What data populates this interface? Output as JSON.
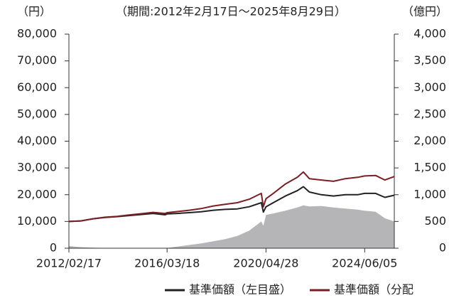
{
  "chart_data": {
    "type": "line",
    "title": "（期間:2012年2月17日～2025年8月29日）",
    "y_label": "（円）",
    "y2_label": "（億円）",
    "x": [
      "2012/02/17",
      "2012/08/17",
      "2013/02/18",
      "2013/08/19",
      "2014/02/17",
      "2014/08/18",
      "2015/02/17",
      "2015/08/17",
      "2016/02/17",
      "2016/03/18",
      "2016/08/17",
      "2017/02/17",
      "2017/08/17",
      "2018/02/19",
      "2018/08/17",
      "2019/02/18",
      "2019/08/19",
      "2020/02/17",
      "2020/03/19",
      "2020/04/28",
      "2020/08/17",
      "2021/02/17",
      "2021/08/17",
      "2021/11/17",
      "2022/02/17",
      "2022/08/17",
      "2023/02/17",
      "2023/08/17",
      "2024/02/19",
      "2024/06/05",
      "2024/11/18",
      "2025/04/08",
      "2025/08/29"
    ],
    "xlim": [
      "2012/02/17",
      "2025/08/29"
    ],
    "xticks": [
      "2012/02/17",
      "2016/03/18",
      "2020/04/28",
      "2024/06/05"
    ],
    "ylim": [
      0,
      80000
    ],
    "yticks": [
      0,
      {
        "value": 10000,
        "label": "10,000"
      },
      {
        "value": 20000,
        "label": "20,000"
      },
      {
        "value": 30000,
        "label": "30,000"
      },
      {
        "value": 40000,
        "label": "40,000"
      },
      {
        "value": 50000,
        "label": "50,000"
      },
      {
        "value": 60000,
        "label": "60,000"
      },
      {
        "value": 70000,
        "label": "70,000"
      },
      {
        "value": 80000,
        "label": "80,000"
      }
    ],
    "y2lim": [
      0,
      4000
    ],
    "y2ticks": [
      0,
      500,
      {
        "value": 1000,
        "label": "1,000"
      },
      {
        "value": 1500,
        "label": "1,500"
      },
      {
        "value": 2000,
        "label": "2,000"
      },
      {
        "value": 2500,
        "label": "2,500"
      },
      {
        "value": 3000,
        "label": "3,000"
      },
      {
        "value": 3500,
        "label": "3,500"
      },
      {
        "value": 4000,
        "label": "4,000"
      }
    ],
    "series": [
      {
        "name": "基準価額（左目盛）",
        "color": "#222222",
        "kind": "line",
        "values": [
          10000,
          10200,
          11000,
          11500,
          11800,
          12200,
          12600,
          13000,
          12500,
          12800,
          13000,
          13300,
          13600,
          14200,
          14500,
          14700,
          15500,
          17000,
          13500,
          15500,
          17000,
          19500,
          21500,
          23000,
          21000,
          20000,
          19500,
          20000,
          20000,
          20500,
          20500,
          19000,
          19800
        ]
      },
      {
        "name": "基準価額（分配",
        "color": "#7a1f24",
        "kind": "line",
        "values": [
          10000,
          10200,
          11000,
          11600,
          11900,
          12400,
          12900,
          13400,
          13000,
          13300,
          13700,
          14200,
          14800,
          15800,
          16400,
          17000,
          18300,
          20500,
          15500,
          18500,
          20500,
          24000,
          26500,
          28500,
          26000,
          25500,
          25000,
          26000,
          26500,
          27000,
          27200,
          25500,
          26800
        ]
      },
      {
        "color": "#b5b5b8",
        "kind": "area",
        "axis": "y2",
        "values": [
          40,
          20,
          10,
          5,
          3,
          2,
          2,
          2,
          2,
          5,
          30,
          60,
          90,
          130,
          170,
          230,
          330,
          500,
          420,
          620,
          650,
          700,
          760,
          800,
          780,
          790,
          760,
          740,
          720,
          700,
          680,
          560,
          500
        ]
      }
    ]
  }
}
